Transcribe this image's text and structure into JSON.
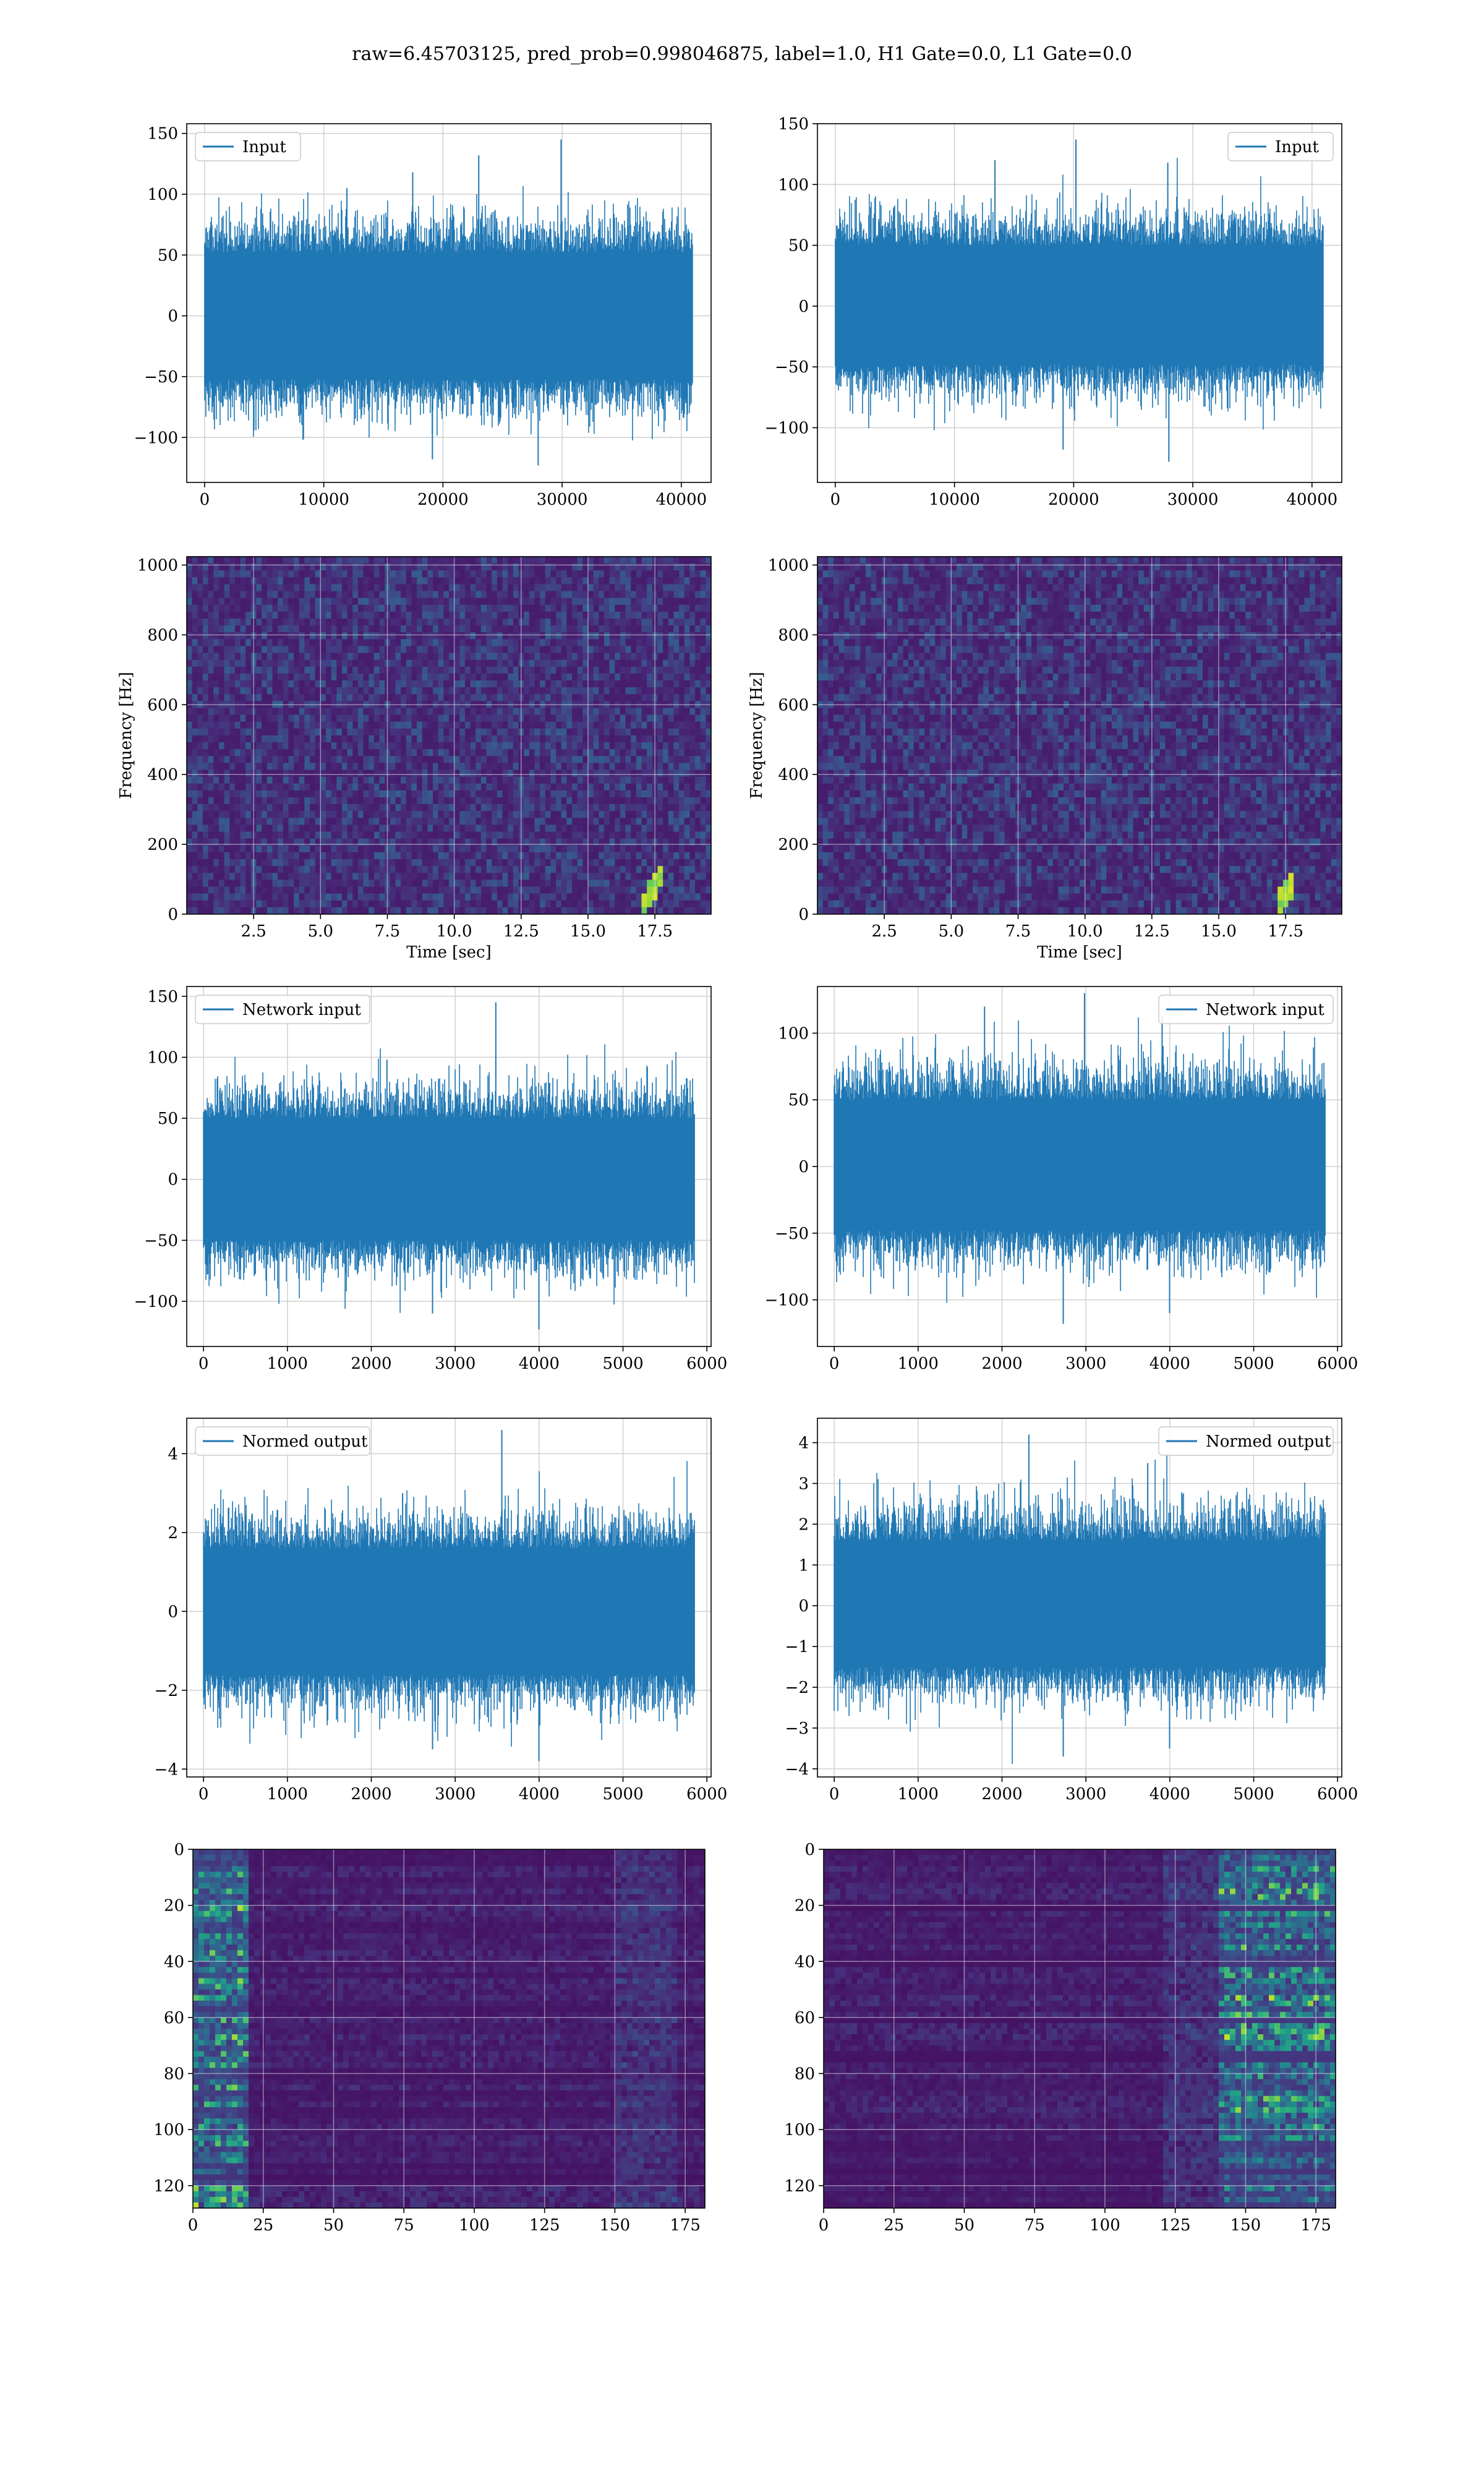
{
  "figure": {
    "title": "raw=6.45703125, pred_prob=0.998046875, label=1.0, H1 Gate=0.0, L1 Gate=0.0",
    "colors": {
      "series": "#1f77b4",
      "grid": "#d0d0d0",
      "axes": "#000000"
    }
  },
  "chart_data": [
    {
      "id": "h1-input",
      "type": "line",
      "legend": "Input",
      "legend_loc": "upper-left",
      "xlim": [
        -1500,
        42500
      ],
      "ylim": [
        -137,
        158
      ],
      "xticks": [
        0,
        10000,
        20000,
        30000,
        40000
      ],
      "yticks": [
        -100,
        -50,
        0,
        50,
        100,
        150
      ],
      "n": 40960,
      "band": [
        -52,
        52
      ],
      "spikes_max": [
        105,
        118,
        132,
        145
      ],
      "spikes_min": [
        -118,
        -123
      ]
    },
    {
      "id": "l1-input",
      "type": "line",
      "legend": "Input",
      "legend_loc": "upper-right",
      "xlim": [
        -1500,
        42500
      ],
      "ylim": [
        -145,
        150
      ],
      "xticks": [
        0,
        10000,
        20000,
        30000,
        40000
      ],
      "yticks": [
        -100,
        -50,
        0,
        50,
        100,
        150
      ],
      "n": 40960,
      "band": [
        -48,
        50
      ],
      "spikes_max": [
        120,
        137,
        118
      ],
      "spikes_min": [
        -118,
        -128
      ]
    },
    {
      "id": "h1-spectrogram",
      "type": "heatmap",
      "cmap": "viridis",
      "xlim": [
        0,
        19.6
      ],
      "ylim": [
        0,
        1024
      ],
      "xticks": [
        2.5,
        5.0,
        7.5,
        10.0,
        12.5,
        15.0,
        17.5
      ],
      "yticks": [
        0,
        200,
        400,
        600,
        800,
        1000
      ],
      "xlabel": "Time [sec]",
      "ylabel": "Frequency [Hz]",
      "chirp": {
        "t_start": 17.1,
        "t_end": 17.8,
        "f_start": 30,
        "f_end": 120
      }
    },
    {
      "id": "l1-spectrogram",
      "type": "heatmap",
      "cmap": "viridis",
      "xlim": [
        0,
        19.6
      ],
      "ylim": [
        0,
        1024
      ],
      "xticks": [
        2.5,
        5.0,
        7.5,
        10.0,
        12.5,
        15.0,
        17.5
      ],
      "yticks": [
        0,
        200,
        400,
        600,
        800,
        1000
      ],
      "xlabel": "Time [sec]",
      "ylabel": "Frequency [Hz]",
      "chirp": {
        "t_start": 17.3,
        "t_end": 17.9,
        "f_start": 40,
        "f_end": 90
      }
    },
    {
      "id": "h1-network-input",
      "type": "line",
      "legend": "Network input",
      "legend_loc": "upper-left",
      "xlim": [
        -200,
        6050
      ],
      "ylim": [
        -137,
        158
      ],
      "xticks": [
        0,
        1000,
        2000,
        3000,
        4000,
        5000,
        6000
      ],
      "yticks": [
        -100,
        -50,
        0,
        50,
        100,
        150
      ],
      "n": 5850,
      "band": [
        -50,
        50
      ],
      "spikes_max": [
        98,
        145
      ],
      "spikes_min": [
        -110,
        -123
      ]
    },
    {
      "id": "l1-network-input",
      "type": "line",
      "legend": "Network input",
      "legend_loc": "upper-right",
      "xlim": [
        -200,
        6050
      ],
      "ylim": [
        -135,
        135
      ],
      "xticks": [
        0,
        1000,
        2000,
        3000,
        4000,
        5000,
        6000
      ],
      "yticks": [
        -100,
        -50,
        0,
        50,
        100
      ],
      "n": 5850,
      "band": [
        -48,
        50
      ],
      "spikes_max": [
        120,
        130,
        113
      ],
      "spikes_min": [
        -118,
        -110
      ]
    },
    {
      "id": "h1-normed-output",
      "type": "line",
      "legend": "Normed output",
      "legend_loc": "upper-left",
      "xlim": [
        -200,
        6050
      ],
      "ylim": [
        -4.2,
        4.9
      ],
      "xticks": [
        0,
        1000,
        2000,
        3000,
        4000,
        5000,
        6000
      ],
      "yticks": [
        -4,
        -2,
        0,
        2,
        4
      ],
      "n": 5850,
      "band": [
        -1.6,
        1.6
      ],
      "spikes_max": [
        3.0,
        4.6
      ],
      "spikes_min": [
        -3.5,
        -3.8
      ]
    },
    {
      "id": "l1-normed-output",
      "type": "line",
      "legend": "Normed output",
      "legend_loc": "upper-right",
      "xlim": [
        -200,
        6050
      ],
      "ylim": [
        -4.2,
        4.6
      ],
      "xticks": [
        0,
        1000,
        2000,
        3000,
        4000,
        5000,
        6000
      ],
      "yticks": [
        -4,
        -3,
        -2,
        -1,
        0,
        1,
        2,
        3,
        4
      ],
      "n": 5850,
      "band": [
        -1.5,
        1.6
      ],
      "spikes_max": [
        4.2,
        3.5
      ],
      "spikes_min": [
        -3.7,
        -3.5
      ]
    },
    {
      "id": "h1-feature-map",
      "type": "heatmap",
      "cmap": "viridis",
      "origin": "upper",
      "xlim": [
        0,
        182
      ],
      "ylim": [
        128,
        0
      ],
      "xticks": [
        0,
        25,
        50,
        75,
        100,
        125,
        150,
        175
      ],
      "yticks": [
        0,
        20,
        40,
        60,
        80,
        100,
        120
      ],
      "hot_columns": [
        0,
        20
      ],
      "hot_side": "left"
    },
    {
      "id": "l1-feature-map",
      "type": "heatmap",
      "cmap": "viridis",
      "origin": "upper",
      "xlim": [
        0,
        182
      ],
      "ylim": [
        128,
        0
      ],
      "xticks": [
        0,
        25,
        50,
        75,
        100,
        125,
        150,
        175
      ],
      "yticks": [
        0,
        20,
        40,
        60,
        80,
        100,
        120
      ],
      "hot_columns": [
        140,
        182
      ],
      "hot_side": "right"
    }
  ]
}
